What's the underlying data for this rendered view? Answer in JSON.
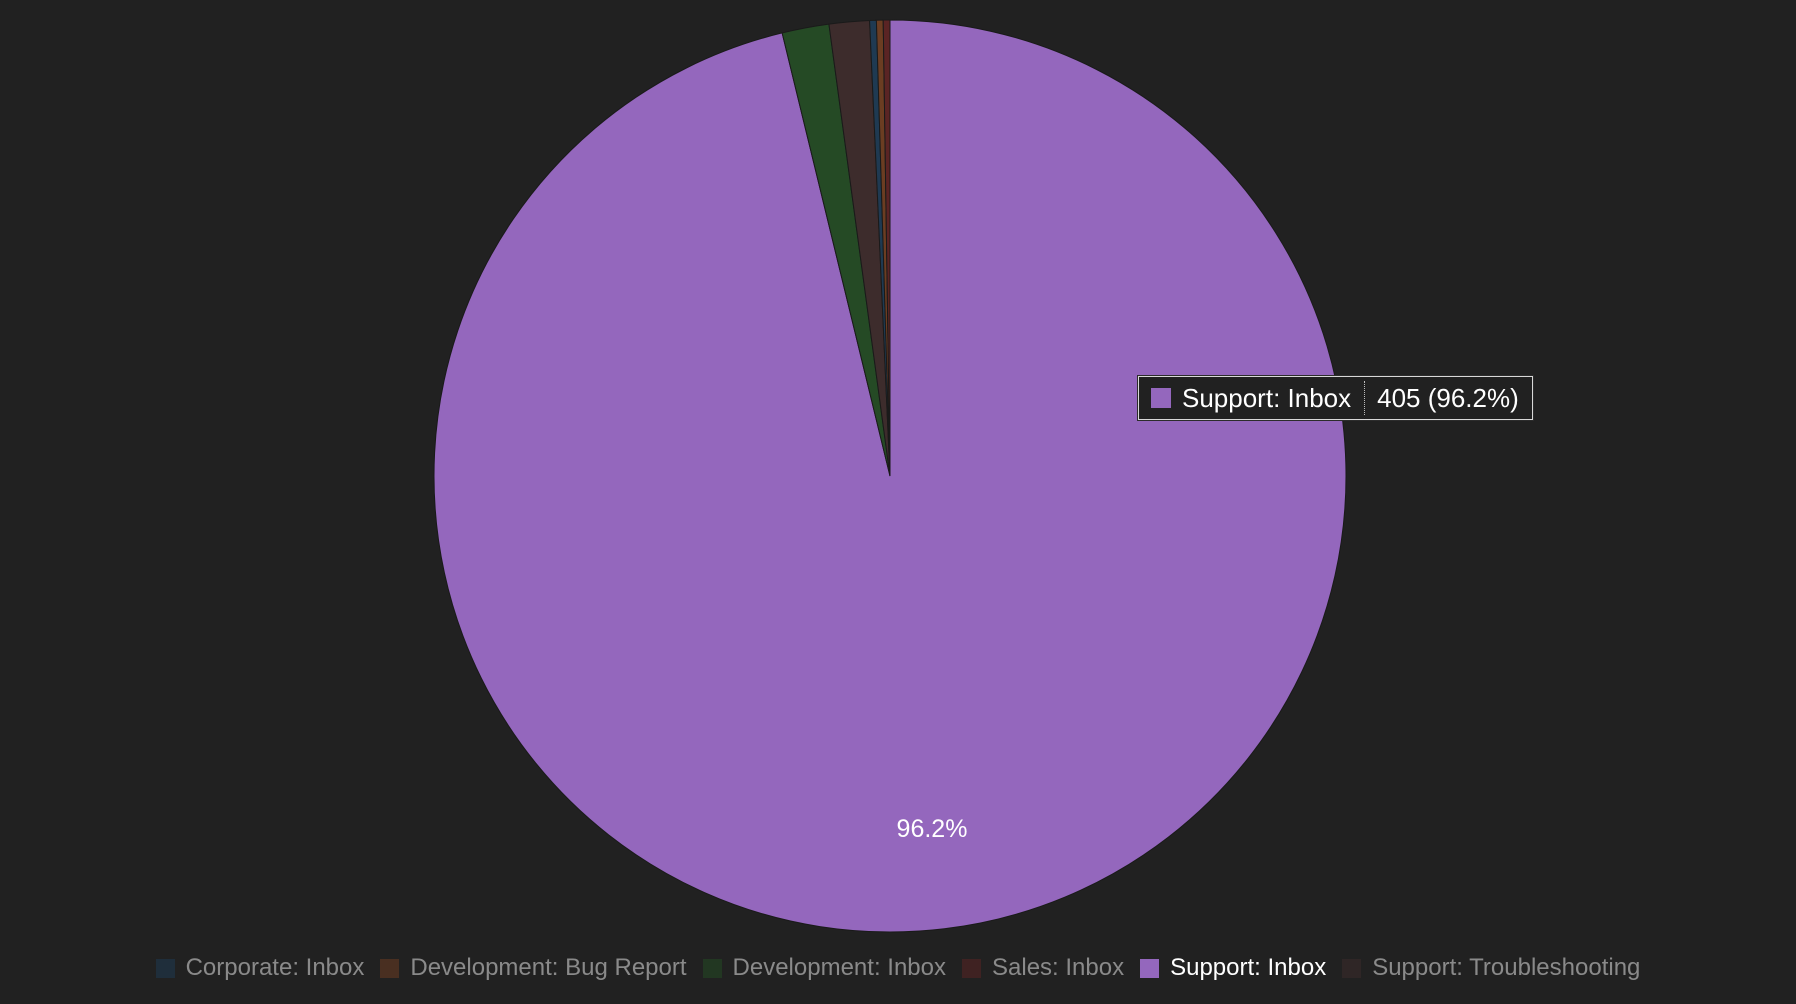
{
  "chart_data": {
    "type": "pie",
    "slices": [
      {
        "label": "Support: Inbox",
        "value": 405,
        "percent": 96.2,
        "color": "#9467bd"
      },
      {
        "label": "Development: Inbox",
        "value": 7,
        "percent": 1.7,
        "color": "#254a25"
      },
      {
        "label": "Support: Troubleshooting",
        "value": 6,
        "percent": 1.4,
        "color": "#3d2c2c"
      },
      {
        "label": "Corporate: Inbox",
        "value": 1,
        "percent": 0.2,
        "color": "#1f3a52"
      },
      {
        "label": "Development: Bug Report",
        "value": 1,
        "percent": 0.2,
        "color": "#6b3d22"
      },
      {
        "label": "Sales: Inbox",
        "value": 1,
        "percent": 0.2,
        "color": "#5a2424"
      }
    ],
    "slice_label": "96.2%",
    "legend_position": "bottom",
    "legend": [
      {
        "label": "Corporate: Inbox",
        "color": "#1f3a52",
        "active": false
      },
      {
        "label": "Development: Bug Report",
        "color": "#6b3d22",
        "active": false
      },
      {
        "label": "Development: Inbox",
        "color": "#254a25",
        "active": false
      },
      {
        "label": "Sales: Inbox",
        "color": "#5a2424",
        "active": false
      },
      {
        "label": "Support: Inbox",
        "color": "#9467bd",
        "active": true
      },
      {
        "label": "Support: Troubleshooting",
        "color": "#3d2c2c",
        "active": false
      }
    ]
  },
  "tooltip": {
    "series": "Support: Inbox",
    "value": "405 (96.2%)",
    "color": "#9467bd"
  }
}
